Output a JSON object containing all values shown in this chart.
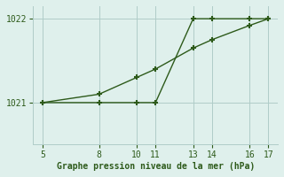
{
  "line1_x": [
    5,
    8,
    10,
    11,
    13,
    14,
    16,
    17
  ],
  "line1_y": [
    1021.0,
    1021.0,
    1021.0,
    1021.0,
    1022.0,
    1022.0,
    1022.0,
    1022.0
  ],
  "line2_x": [
    5,
    8,
    10,
    11,
    13,
    14,
    16,
    17
  ],
  "line2_y": [
    1021.0,
    1021.1,
    1021.3,
    1021.4,
    1021.65,
    1021.75,
    1021.92,
    1022.0
  ],
  "xlabel": "Graphe pression niveau de la mer (hPa)",
  "xticks": [
    5,
    8,
    10,
    11,
    13,
    14,
    16,
    17
  ],
  "yticks": [
    1021,
    1022
  ],
  "xlim": [
    4.5,
    17.5
  ],
  "ylim": [
    1020.5,
    1022.15
  ],
  "line_color": "#2d5a1a",
  "bg_color": "#dff0ec",
  "grid_color": "#b0ccc8",
  "xlabel_color": "#2d5a1a",
  "tick_color": "#2d5a1a",
  "marker": "+"
}
